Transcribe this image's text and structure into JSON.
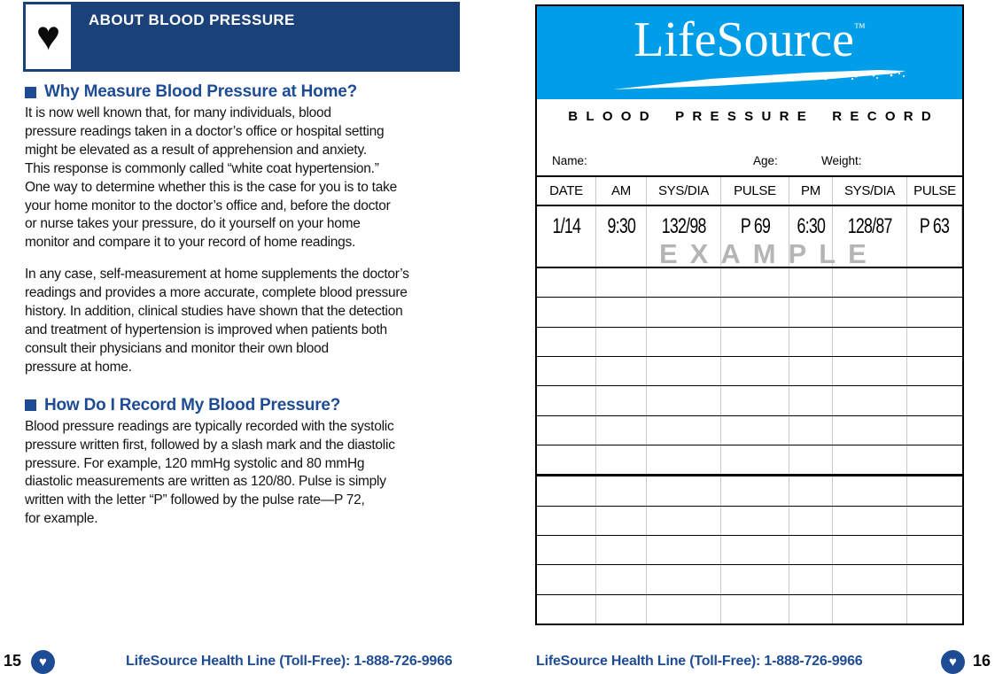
{
  "colors": {
    "navy_bar": "#1b4179",
    "heading_navy": "#1e4c94",
    "logo_cyan": "#009ee8",
    "grid_gray": "#c9c9c9",
    "watermark_gray": "#b5b5b5"
  },
  "left_page": {
    "page_number": "15",
    "header_title": "ABOUT BLOOD PRESSURE",
    "sections": [
      {
        "heading": "Why Measure Blood Pressure at Home?",
        "paragraphs": [
          "It is now well known that, for many individuals, blood\npressure readings taken in a doctor’s office or hospital setting\nmight be elevated as a result of apprehension and anxiety.\nThis response is commonly called “white coat hypertension.”\nOne way to determine whether this is the case for you is to take\nyour home monitor to the doctor’s office and, before the doctor\nor nurse takes your pressure, do it yourself on your home\nmonitor and compare it to your record of home readings.",
          "In any case, self-measurement at home supplements the doctor’s\nreadings and provides a more accurate, complete blood pressure\nhistory. In addition, clinical studies have shown that the detection\nand treatment of hypertension is improved when patients both\nconsult their physicians and monitor their own blood\npressure at home."
        ]
      },
      {
        "heading": "How Do I Record My Blood Pressure?",
        "paragraphs": [
          "Blood pressure readings are typically recorded with the systolic\npressure written first, followed by a slash mark and the diastolic\npressure. For example, 120 mmHg systolic and 80 mmHg\ndiastolic measurements are written as 120/80.  Pulse is simply\nwritten with the letter “P” followed by the pulse rate—P 72,\nfor example."
        ]
      }
    ],
    "footer_text": "LifeSource Health Line (Toll-Free): 1-888-726-9966"
  },
  "right_page": {
    "page_number": "16",
    "logo_text": "LifeSource",
    "logo_tm": "™",
    "record_title": "BLOOD PRESSURE RECORD",
    "fields": {
      "name_label": "Name:",
      "age_label": "Age:",
      "weight_label": "Weight:"
    },
    "table": {
      "columns": [
        "DATE",
        "AM",
        "SYS/DIA",
        "PULSE",
        "PM",
        "SYS/DIA",
        "PULSE"
      ],
      "example_row": [
        "1/14",
        "9:30",
        "132/98",
        "P 69",
        "6:30",
        "128/87",
        "P 63"
      ],
      "example_watermark": "EXAMPLE",
      "empty_row_count": 12
    },
    "footer_text": "LifeSource Health Line (Toll-Free): 1-888-726-9966"
  }
}
